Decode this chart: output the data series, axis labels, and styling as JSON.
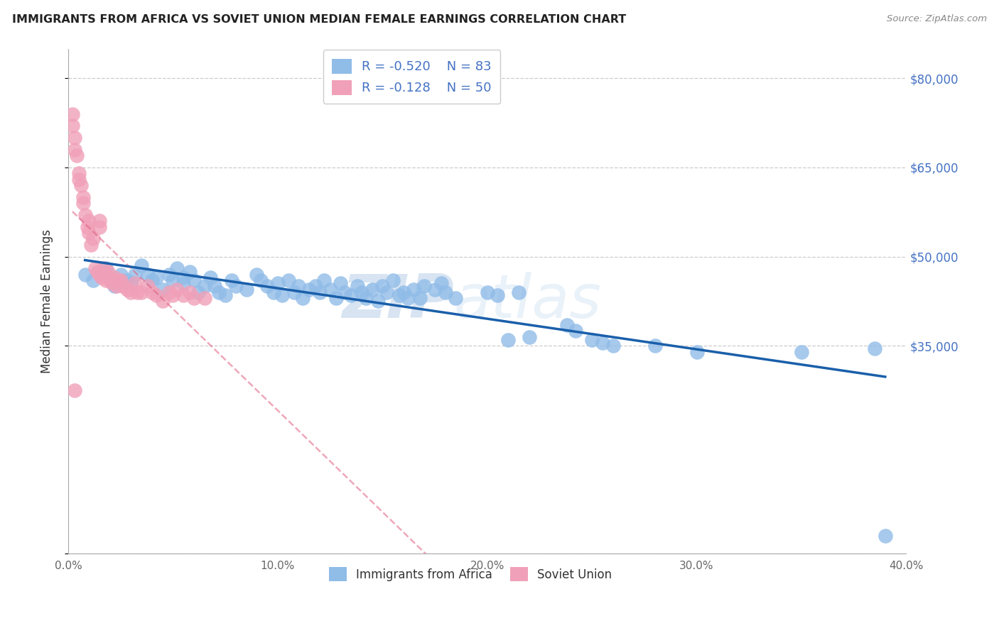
{
  "title": "IMMIGRANTS FROM AFRICA VS SOVIET UNION MEDIAN FEMALE EARNINGS CORRELATION CHART",
  "source": "Source: ZipAtlas.com",
  "ylabel": "Median Female Earnings",
  "xlim": [
    0.0,
    0.4
  ],
  "ylim": [
    0,
    85000
  ],
  "yticks": [
    0,
    35000,
    50000,
    65000,
    80000
  ],
  "ytick_labels_right": [
    "",
    "$35,000",
    "$50,000",
    "$65,000",
    "$80,000"
  ],
  "xticks": [
    0.0,
    0.1,
    0.2,
    0.3,
    0.4
  ],
  "xtick_labels": [
    "0.0%",
    "10.0%",
    "20.0%",
    "30.0%",
    "40.0%"
  ],
  "legend_labels": [
    "Immigrants from Africa",
    "Soviet Union"
  ],
  "R_africa": -0.52,
  "N_africa": 83,
  "R_soviet": -0.128,
  "N_soviet": 50,
  "watermark_zip": "ZIP",
  "watermark_atlas": "atlas",
  "color_africa": "#90bce8",
  "color_soviet": "#f0a0b8",
  "trendline_africa_color": "#1a5faa",
  "trendline_soviet_color": "#e06080",
  "africa_x": [
    0.008,
    0.012,
    0.015,
    0.018,
    0.02,
    0.022,
    0.025,
    0.028,
    0.03,
    0.032,
    0.035,
    0.038,
    0.04,
    0.042,
    0.045,
    0.048,
    0.05,
    0.052,
    0.055,
    0.055,
    0.058,
    0.06,
    0.062,
    0.065,
    0.068,
    0.07,
    0.072,
    0.075,
    0.078,
    0.08,
    0.085,
    0.09,
    0.092,
    0.095,
    0.098,
    0.1,
    0.102,
    0.105,
    0.108,
    0.11,
    0.112,
    0.115,
    0.118,
    0.12,
    0.122,
    0.125,
    0.128,
    0.13,
    0.132,
    0.135,
    0.138,
    0.14,
    0.142,
    0.145,
    0.148,
    0.15,
    0.152,
    0.155,
    0.158,
    0.16,
    0.162,
    0.165,
    0.168,
    0.17,
    0.175,
    0.178,
    0.18,
    0.185,
    0.2,
    0.205,
    0.21,
    0.215,
    0.22,
    0.25,
    0.255,
    0.26,
    0.28,
    0.3,
    0.35,
    0.385,
    0.39,
    0.238,
    0.242
  ],
  "africa_y": [
    47000,
    46000,
    47500,
    48000,
    46500,
    45000,
    47000,
    46000,
    45500,
    47000,
    48500,
    47000,
    46000,
    46500,
    44500,
    47000,
    46000,
    48000,
    46500,
    45500,
    47500,
    46000,
    44000,
    45000,
    46500,
    45000,
    44000,
    43500,
    46000,
    45000,
    44500,
    47000,
    46000,
    45000,
    44000,
    45500,
    43500,
    46000,
    44000,
    45000,
    43000,
    44500,
    45000,
    44000,
    46000,
    44500,
    43000,
    45500,
    44000,
    43500,
    45000,
    44000,
    43000,
    44500,
    42500,
    45000,
    44000,
    46000,
    43500,
    44000,
    43000,
    44500,
    43000,
    45000,
    44500,
    45500,
    44000,
    43000,
    44000,
    43500,
    36000,
    44000,
    36500,
    36000,
    35500,
    35000,
    35000,
    34000,
    34000,
    34500,
    3000,
    38500,
    37500
  ],
  "soviet_x": [
    0.002,
    0.002,
    0.003,
    0.003,
    0.004,
    0.005,
    0.005,
    0.006,
    0.007,
    0.007,
    0.008,
    0.009,
    0.01,
    0.01,
    0.011,
    0.012,
    0.013,
    0.014,
    0.015,
    0.015,
    0.016,
    0.017,
    0.018,
    0.018,
    0.019,
    0.02,
    0.021,
    0.022,
    0.023,
    0.024,
    0.025,
    0.026,
    0.028,
    0.03,
    0.032,
    0.033,
    0.035,
    0.038,
    0.04,
    0.042,
    0.045,
    0.048,
    0.05,
    0.052,
    0.055,
    0.058,
    0.06,
    0.065,
    0.015,
    0.003
  ],
  "soviet_y": [
    74000,
    72000,
    70000,
    68000,
    67000,
    64000,
    63000,
    62000,
    59000,
    60000,
    57000,
    55000,
    56000,
    54000,
    52000,
    53000,
    48000,
    47500,
    47000,
    55000,
    46500,
    48000,
    47000,
    46000,
    47500,
    46000,
    45500,
    46500,
    45000,
    46000,
    46000,
    45000,
    44500,
    44000,
    45500,
    44000,
    44000,
    45000,
    44000,
    43500,
    42500,
    44000,
    43500,
    44500,
    43500,
    44000,
    43000,
    43000,
    56000,
    27500
  ]
}
